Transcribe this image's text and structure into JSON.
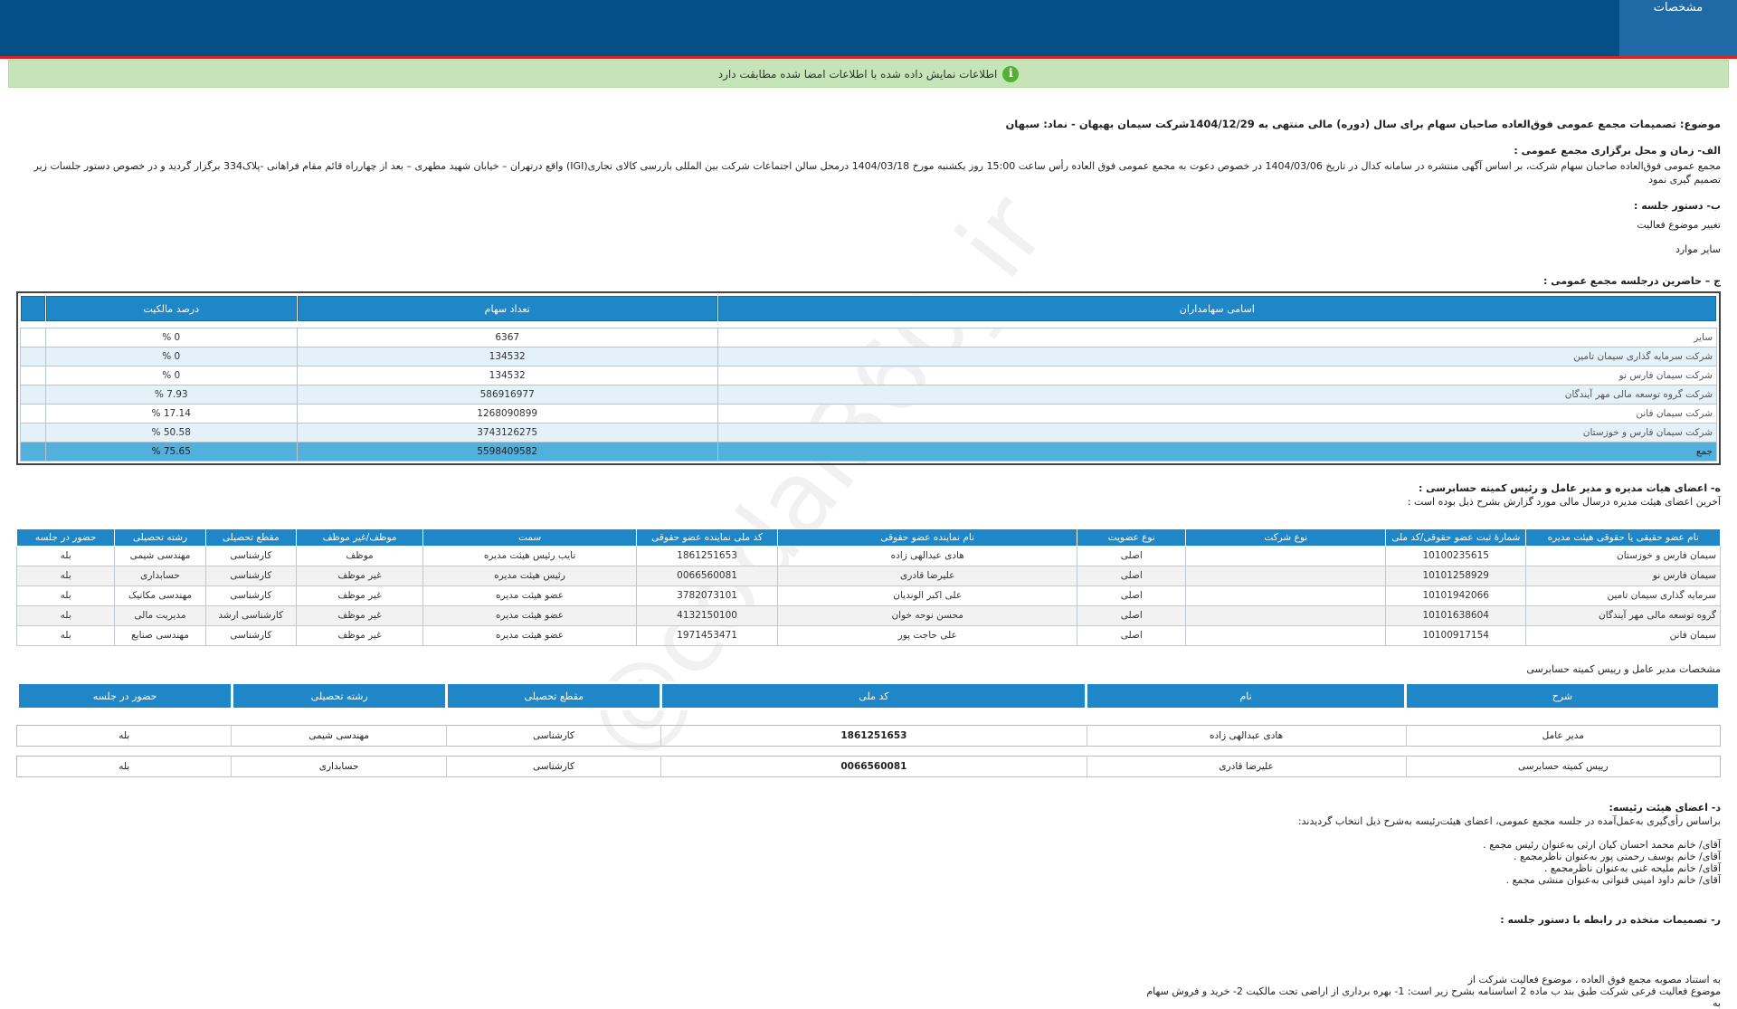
{
  "header": {
    "tab_label": "مشخصات"
  },
  "notice": {
    "text": "اطلاعات نمایش داده شده با اطلاعات امضا شده مطابقت دارد",
    "icon": "info-icon"
  },
  "watermark": "@codal360_ir",
  "subject": "موضوع: تصمیمات مجمع عمومی فوق‌العاده صاحبان سهام برای سال (دوره) مالی منتهی به 1404/12/29شرکت سیمان بهبهان - نماد: سبهان",
  "section_a": {
    "title": "الف- زمان و محل برگزاری مجمع عمومی :",
    "text": "مجمع عمومی فوق‌العاده صاحبان سهام شرکت، بر اساس آگهی منتشره در سامانه کدال در تاریخ 1404/03/06 در خصوص دعوت به مجمع عمومی فوق العاده رأس ساعت 15:00 روز یکشنبه مورخ 1404/03/18 درمحل سالن اجتماعات شرکت بین المللی بازرسی کالای تجاری(IGI) واقع درتهران – خیابان شهید مطهری – بعد از چهارراه قائم مقام فراهانی -پلاک334 برگزار گردید و در خصوص دستور جلسات زیر تصمیم گیری نمود"
  },
  "section_b": {
    "title": "ب- دستور جلسه :",
    "items": [
      "تغییر موضوع فعالیت",
      "سایر موارد"
    ]
  },
  "section_c": {
    "title": "ج – حاضرین درجلسه مجمع عمومی :",
    "headers": [
      "اسامی سهامداران",
      "تعداد سهام",
      "درصد مالکیت"
    ],
    "rows": [
      {
        "name": "سایر",
        "shares": "6367",
        "percent": "0 %"
      },
      {
        "name": "شرکت سرمایه گذاری سیمان تامین",
        "shares": "134532",
        "percent": "0 %"
      },
      {
        "name": "شرکت سیمان فارس نو",
        "shares": "134532",
        "percent": "0 %"
      },
      {
        "name": "شرکت گروه توسعه مالی مهر آیندگان",
        "shares": "586916977",
        "percent": "7.93 %"
      },
      {
        "name": "شرکت سیمان فانن",
        "shares": "1268090899",
        "percent": "17.14 %"
      },
      {
        "name": "شرکت سیمان فارس و خوزستان",
        "shares": "3743126275",
        "percent": "50.58 %"
      }
    ],
    "total": {
      "name": "جمع",
      "shares": "5598409582",
      "percent": "75.65 %"
    }
  },
  "section_h": {
    "title": "ه- اعضای هیات مدیره و مدیر عامل و رئیس کمیته حسابرسی :",
    "subtitle": "آخرین اعضای هیئت مدیره درسال مالی مورد گزارش بشرح ذیل بوده است :",
    "headers": [
      "نام عضو حقیقی یا حقوقی هیئت مدیره",
      "شمارهٔ ثبت عضو حقوقی/کد ملی",
      "نوع شرکت",
      "نوع عضویت",
      "نام نماینده عضو حقوقی",
      "کد ملی نماینده عضو حقوقی",
      "سمت",
      "موظف/غیر موظف",
      "مقطع تحصیلی",
      "رشته تحصیلی",
      "حضور در جلسه"
    ],
    "rows": [
      [
        "سیمان فارس و خوزستان",
        "10100235615",
        "",
        "اصلی",
        "هادی عبدالهی زاده",
        "1861251653",
        "نایب رئیس هیئت مدیره",
        "موظف",
        "کارشناسی",
        "مهندسی شیمی",
        "بله"
      ],
      [
        "سیمان فارس نو",
        "10101258929",
        "",
        "اصلی",
        "علیرضا قادری",
        "0066560081",
        "رئیس هیئت مدیره",
        "غیر موظف",
        "کارشناسی",
        "حسابداری",
        "بله"
      ],
      [
        "سرمایه گذاری سیمان تامین",
        "10101942066",
        "",
        "اصلی",
        "علی اکبر الوندیان",
        "3782073101",
        "عضو هیئت مدیره",
        "غیر موظف",
        "کارشناسی",
        "مهندسی مکانیک",
        "بله"
      ],
      [
        "گروه توسعه مالی مهر آیندگان",
        "10101638604",
        "",
        "اصلی",
        "محسن نوحه خوان",
        "4132150100",
        "عضو هیئت مدیره",
        "غیر موظف",
        "کارشناسی ارشد",
        "مدیریت مالی",
        "بله"
      ],
      [
        "سیمان فانن",
        "10100917154",
        "",
        "اصلی",
        "علی حاجت پور",
        "1971453471",
        "عضو هیئت مدیره",
        "غیر موظف",
        "کارشناسی",
        "مهندسی صنایع",
        "بله"
      ]
    ]
  },
  "ceo_section": {
    "title": "مشخصات مدیر عامل و رییس کمیته حسابرسی",
    "headers": [
      "شرح",
      "نام",
      "کد ملی",
      "مقطع تحصیلی",
      "رشته تحصیلی",
      "حضور در جلسه"
    ],
    "rows": [
      [
        "مدیر عامل",
        "هادی عبدالهی زاده",
        "1861251653",
        "کارشناسی",
        "مهندسی شیمی",
        "بله"
      ],
      [
        "رییس کمیته حسابرسی",
        "علیرضا قادری",
        "0066560081",
        "کارشناسی",
        "حسابداری",
        "بله"
      ]
    ]
  },
  "section_d": {
    "title": "د- اعضای هیئت رئیسه:",
    "subtitle": "براساس رأی‌گیری به‌عمل‌آمده در جلسه مجمع عمومی، اعضای هیئت‌رئیسه به‌شرح ذیل انتخاب گردیدند:",
    "items": [
      "آقای/ خانم  محمد احسان کیان ارثی  به‌عنوان رئیس مجمع .",
      "آقای/ خانم  یوسف رحمتی پور  به‌عنوان ناظرمجمع .",
      "آقای/ خانم  ملیحه غنی  به‌عنوان ناظرمجمع .",
      "آقای/ خانم  داود امینی قنواتی  به‌عنوان منشی مجمع ."
    ]
  },
  "section_r": {
    "title": "ر- تصمیمات متخذه در رابطه با دستور جلسه :",
    "lines": [
      "به استناد مصوبه مجمع فوق العاده ، موضوع فعالیت شرکت از",
      "موضوع فعالیت فرعی شرکت طبق بند ب ماده 2 اساسنامه بشرح زیر است: 1- بهره برداری از اراضی تحت مالکیت 2- خرید و فروش سهام",
      "به"
    ]
  }
}
